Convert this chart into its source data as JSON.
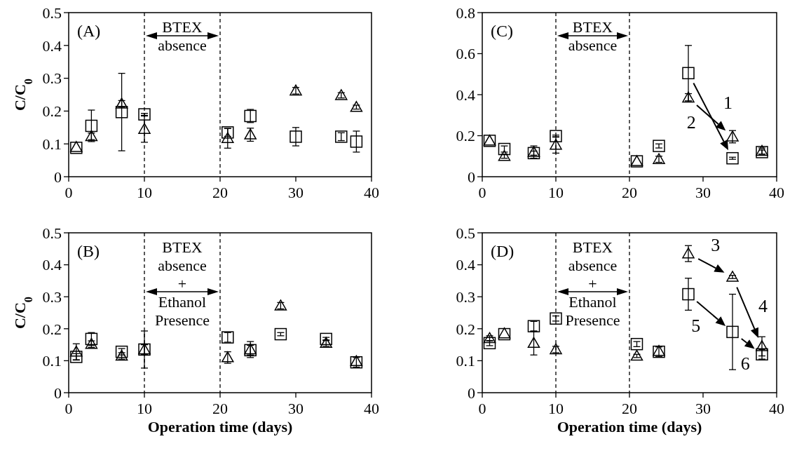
{
  "chart_data": [
    {
      "type": "scatter",
      "ylabel": "C/C$_{0}$",
      "x": [
        1,
        3,
        7,
        10,
        21,
        24,
        30,
        36,
        38
      ],
      "xlim": [
        0,
        40
      ],
      "xticks": [
        0,
        10,
        20,
        30,
        40
      ],
      "ylim": [
        0,
        0.5
      ],
      "yticks": [
        0,
        0.1,
        0.2,
        0.3,
        0.4,
        0.5
      ],
      "series": [
        {
          "color": "#000000",
          "marker": "square",
          "values": [
            0.088,
            0.155,
            0.197,
            0.19,
            0.135,
            0.185,
            0.122,
            0.122,
            0.107
          ],
          "errors": [
            null,
            0.048,
            0.118,
            0.003,
            0.012,
            0.02,
            0.028,
            0.012,
            0.032
          ]
        },
        {
          "color": "#000000",
          "marker": "triangle",
          "values": [
            0.09,
            0.123,
            0.222,
            0.145,
            0.117,
            0.128,
            0.262,
            0.248,
            0.212
          ],
          "errors": [
            null,
            0.01,
            0.01,
            0.04,
            0.03,
            0.02,
            0.01,
            0.008,
            0.006
          ]
        }
      ],
      "ref_lines": [
        {
          "axis": "x",
          "value": 10,
          "line_style": "dashed"
        },
        {
          "axis": "x",
          "value": 20,
          "line_style": "dashed"
        }
      ],
      "annotations": [
        "(A)",
        "BTEX absence"
      ]
    },
    {
      "type": "scatter",
      "x": [
        1,
        3,
        7,
        10,
        21,
        24,
        28,
        34,
        38
      ],
      "xlim": [
        0,
        40
      ],
      "xticks": [
        0,
        10,
        20,
        30,
        40
      ],
      "ylim": [
        0,
        0.8
      ],
      "yticks": [
        0,
        0.2,
        0.4,
        0.6,
        0.8
      ],
      "series": [
        {
          "color": "#000000",
          "marker": "square",
          "values": [
            0.175,
            0.135,
            0.115,
            0.198,
            0.075,
            0.15,
            0.505,
            0.09,
            0.12
          ],
          "errors": [
            null,
            0.015,
            0.01,
            0.005,
            null,
            0.01,
            0.135,
            0.005,
            0.01
          ]
        },
        {
          "color": "#000000",
          "marker": "triangle",
          "values": [
            0.175,
            0.1,
            0.12,
            0.155,
            0.075,
            0.085,
            0.385,
            0.195,
            0.125
          ],
          "errors": [
            null,
            0.01,
            0.03,
            0.04,
            null,
            0.015,
            0.02,
            0.03,
            0.015
          ]
        }
      ],
      "ref_lines": [
        {
          "axis": "x",
          "value": 10,
          "line_style": "dashed"
        },
        {
          "axis": "x",
          "value": 20,
          "line_style": "dashed"
        }
      ],
      "annotations": [
        "(C)",
        "BTEX absence",
        "1",
        "2"
      ]
    },
    {
      "type": "scatter",
      "xlabel": "Operation time (days)",
      "ylabel": "C/C$_{0}$",
      "x": [
        1,
        3,
        7,
        10,
        21,
        24,
        28,
        34,
        38
      ],
      "xlim": [
        0,
        40
      ],
      "xticks": [
        0,
        10,
        20,
        30,
        40
      ],
      "ylim": [
        0,
        0.5
      ],
      "yticks": [
        0,
        0.1,
        0.2,
        0.3,
        0.4,
        0.5
      ],
      "series": [
        {
          "color": "#000000",
          "marker": "square",
          "values": [
            0.112,
            0.168,
            0.128,
            0.135,
            0.173,
            0.133,
            0.183,
            0.168,
            0.095
          ],
          "errors": [
            0.01,
            0.02,
            0.01,
            0.015,
            0.015,
            0.015,
            0.005,
            0.005,
            0.015
          ]
        },
        {
          "color": "#000000",
          "marker": "triangle",
          "values": [
            0.128,
            0.152,
            0.115,
            0.135,
            0.11,
            0.135,
            0.272,
            0.155,
            0.098
          ],
          "errors": [
            0.025,
            0.01,
            0.01,
            0.058,
            0.018,
            0.025,
            0.01,
            0.01,
            null
          ]
        }
      ],
      "ref_lines": [
        {
          "axis": "x",
          "value": 10,
          "line_style": "dashed"
        },
        {
          "axis": "x",
          "value": 20,
          "line_style": "dashed"
        }
      ],
      "annotations": [
        "(B)",
        "BTEX absence + Ethanol Presence"
      ]
    },
    {
      "type": "scatter",
      "xlabel": "Operation time (days)",
      "x": [
        1,
        3,
        7,
        10,
        21,
        24,
        28,
        34,
        38
      ],
      "xlim": [
        0,
        40
      ],
      "xticks": [
        0,
        10,
        20,
        30,
        40
      ],
      "ylim": [
        0,
        0.5
      ],
      "yticks": [
        0,
        0.1,
        0.2,
        0.3,
        0.4,
        0.5
      ],
      "series": [
        {
          "color": "#000000",
          "marker": "square",
          "values": [
            0.155,
            0.183,
            0.208,
            0.232,
            0.152,
            0.128,
            0.308,
            0.19,
            0.12
          ],
          "errors": [
            0.008,
            null,
            0.015,
            0.008,
            0.008,
            0.015,
            0.05,
            0.118,
            0.015
          ]
        },
        {
          "color": "#000000",
          "marker": "triangle",
          "values": [
            0.17,
            0.185,
            0.155,
            0.135,
            0.115,
            0.13,
            0.435,
            0.362,
            0.145
          ],
          "errors": [
            0.008,
            null,
            0.037,
            0.01,
            0.005,
            null,
            0.025,
            0.005,
            0.03
          ]
        }
      ],
      "ref_lines": [
        {
          "axis": "x",
          "value": 10,
          "line_style": "dashed"
        },
        {
          "axis": "x",
          "value": 20,
          "line_style": "dashed"
        }
      ],
      "annotations": [
        "(D)",
        "BTEX absence + Ethanol Presence",
        "3",
        "4",
        "5",
        "6"
      ]
    }
  ]
}
